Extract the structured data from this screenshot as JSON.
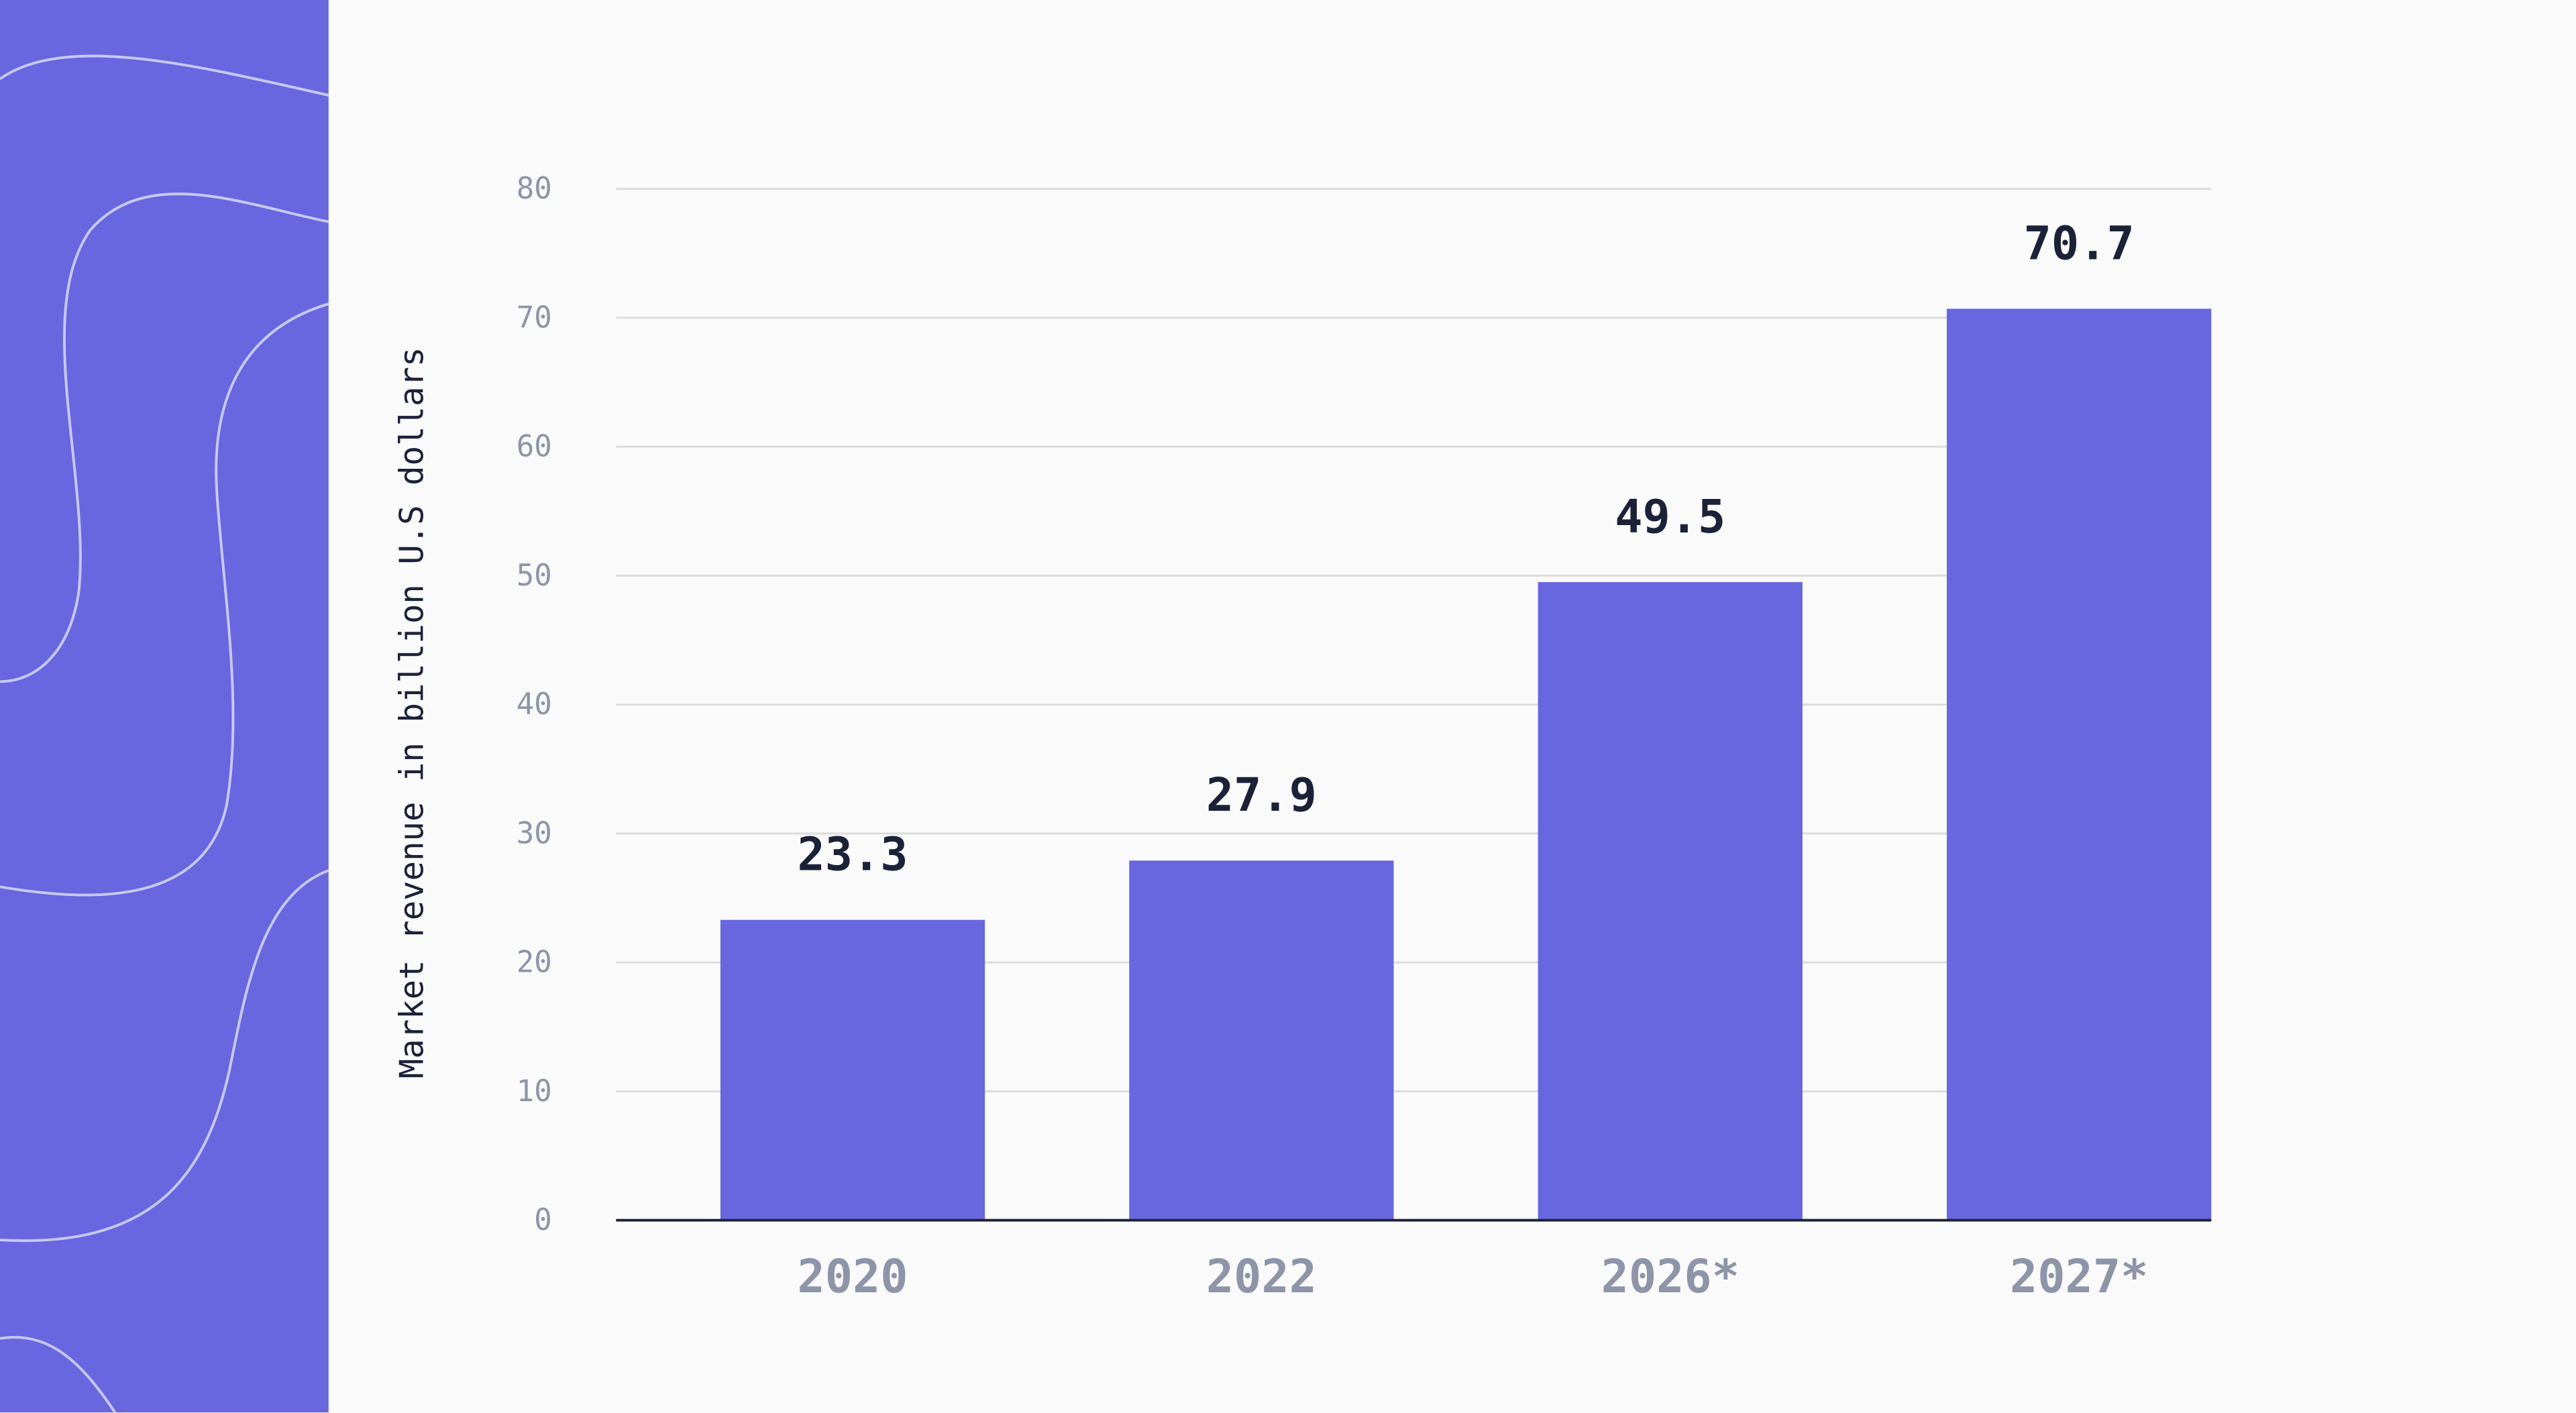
{
  "chart_data": {
    "type": "bar",
    "y_label": "Market revenue in billion U.S dollars",
    "categories": [
      "2020",
      "2022",
      "2026*",
      "2027*"
    ],
    "values": [
      23.3,
      27.9,
      49.5,
      70.7
    ],
    "color": "#6867e0",
    "ylim": [
      0,
      80
    ],
    "yticks": [
      0,
      10,
      20,
      30,
      40,
      50,
      60,
      70,
      80
    ],
    "grid": true
  }
}
